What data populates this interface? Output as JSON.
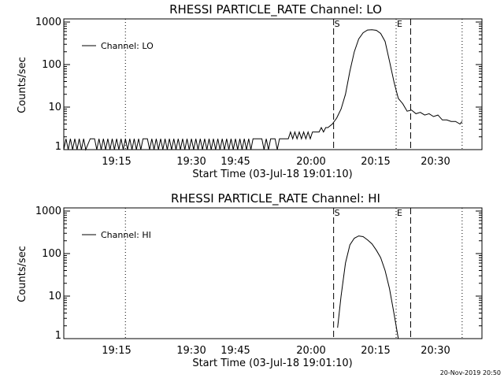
{
  "footer_timestamp": "20-Nov-2019 20:50",
  "chart_data": [
    {
      "type": "line",
      "title": "RHESSI PARTICLE_RATE Channel: LO",
      "xlabel": "Start Time (03-Jul-18 19:01:10)",
      "ylabel": "Counts/sec",
      "yscale": "log",
      "ylim": [
        1,
        1000
      ],
      "xlim_minutes": [
        0,
        95
      ],
      "x_ticks": [
        "19:15",
        "19:30",
        "19:45",
        "20:00",
        "20:15",
        "20:30"
      ],
      "y_ticks": [
        "1",
        "10",
        "100",
        "1000"
      ],
      "legend": "Channel: LO",
      "legend_position": "top-left",
      "markers": [
        {
          "label": "",
          "minute": 14,
          "style": "dotted"
        },
        {
          "label": "S",
          "minute": 61.3,
          "style": "dashed"
        },
        {
          "label": "E",
          "minute": 75.5,
          "style": "dotted"
        },
        {
          "label": "",
          "minute": 78.8,
          "style": "dashed"
        },
        {
          "label": "",
          "minute": 90.5,
          "style": "dotted"
        }
      ],
      "series": [
        {
          "name": "Channel: LO",
          "points": [
            [
              0,
              1
            ],
            [
              0.5,
              1.8
            ],
            [
              1,
              1
            ],
            [
              1.5,
              1.8
            ],
            [
              2,
              1
            ],
            [
              2.5,
              1.8
            ],
            [
              3,
              1
            ],
            [
              3.5,
              1.8
            ],
            [
              4,
              1
            ],
            [
              4.5,
              1.8
            ],
            [
              5,
              1
            ],
            [
              6,
              1.8
            ],
            [
              7,
              1.8
            ],
            [
              7.5,
              1
            ],
            [
              8,
              1.8
            ],
            [
              8.5,
              1
            ],
            [
              9,
              1.8
            ],
            [
              9.5,
              1
            ],
            [
              10,
              1.8
            ],
            [
              10.5,
              1
            ],
            [
              11,
              1.8
            ],
            [
              11.5,
              1
            ],
            [
              12,
              1.8
            ],
            [
              12.5,
              1
            ],
            [
              13,
              1.8
            ],
            [
              13.5,
              1
            ],
            [
              14,
              1.8
            ],
            [
              14.5,
              1
            ],
            [
              15,
              1.8
            ],
            [
              15.5,
              1
            ],
            [
              16,
              1.8
            ],
            [
              16.5,
              1
            ],
            [
              17,
              1.8
            ],
            [
              17.5,
              1
            ],
            [
              18,
              1.8
            ],
            [
              19,
              1.8
            ],
            [
              19.5,
              1
            ],
            [
              20,
              1.8
            ],
            [
              20.5,
              1
            ],
            [
              21,
              1.8
            ],
            [
              21.5,
              1
            ],
            [
              22,
              1.8
            ],
            [
              22.5,
              1
            ],
            [
              23,
              1.8
            ],
            [
              23.5,
              1
            ],
            [
              24,
              1.8
            ],
            [
              24.5,
              1
            ],
            [
              25,
              1.8
            ],
            [
              25.5,
              1
            ],
            [
              26,
              1.8
            ],
            [
              26.5,
              1
            ],
            [
              27,
              1.8
            ],
            [
              27.5,
              1
            ],
            [
              28,
              1.8
            ],
            [
              28.5,
              1
            ],
            [
              29,
              1.8
            ],
            [
              29.5,
              1
            ],
            [
              30,
              1.8
            ],
            [
              30.5,
              1
            ],
            [
              31,
              1.8
            ],
            [
              31.5,
              1
            ],
            [
              32,
              1.8
            ],
            [
              32.5,
              1
            ],
            [
              33,
              1.8
            ],
            [
              33.5,
              1
            ],
            [
              34,
              1.8
            ],
            [
              34.5,
              1
            ],
            [
              35,
              1.8
            ],
            [
              35.5,
              1
            ],
            [
              36,
              1.8
            ],
            [
              36.5,
              1
            ],
            [
              37,
              1.8
            ],
            [
              37.5,
              1
            ],
            [
              38,
              1.8
            ],
            [
              38.5,
              1
            ],
            [
              39,
              1.8
            ],
            [
              39.5,
              1
            ],
            [
              40,
              1.8
            ],
            [
              40.5,
              1
            ],
            [
              41,
              1.8
            ],
            [
              41.5,
              1
            ],
            [
              42,
              1.8
            ],
            [
              42.5,
              1
            ],
            [
              43,
              1.8
            ],
            [
              44,
              1.8
            ],
            [
              45,
              1.8
            ],
            [
              45.5,
              1
            ],
            [
              46,
              1.8
            ],
            [
              46.5,
              1
            ],
            [
              47,
              1.8
            ],
            [
              48,
              1.8
            ],
            [
              48.5,
              1
            ],
            [
              49,
              1.8
            ],
            [
              50,
              1.8
            ],
            [
              51,
              1.8
            ],
            [
              51.5,
              2.6
            ],
            [
              52,
              1.8
            ],
            [
              52.5,
              2.6
            ],
            [
              53,
              1.8
            ],
            [
              53.5,
              2.6
            ],
            [
              54,
              1.8
            ],
            [
              54.5,
              2.6
            ],
            [
              55,
              1.8
            ],
            [
              55.5,
              2.6
            ],
            [
              56,
              1.8
            ],
            [
              56.5,
              2.6
            ],
            [
              57,
              2.6
            ],
            [
              58,
              2.6
            ],
            [
              58.5,
              3.3
            ],
            [
              59,
              2.6
            ],
            [
              59.5,
              3.3
            ],
            [
              60,
              3.3
            ],
            [
              61,
              4
            ],
            [
              62,
              5.5
            ],
            [
              63,
              9
            ],
            [
              64,
              20
            ],
            [
              65,
              70
            ],
            [
              66,
              200
            ],
            [
              67,
              400
            ],
            [
              68,
              560
            ],
            [
              69,
              650
            ],
            [
              70,
              660
            ],
            [
              71,
              640
            ],
            [
              72,
              540
            ],
            [
              73,
              350
            ],
            [
              74,
              120
            ],
            [
              75,
              40
            ],
            [
              75.5,
              25
            ],
            [
              76,
              16
            ],
            [
              77,
              12
            ],
            [
              78,
              8
            ],
            [
              79,
              8.5
            ],
            [
              80,
              7
            ],
            [
              81,
              7.5
            ],
            [
              82,
              6.5
            ],
            [
              83,
              7
            ],
            [
              84,
              6
            ],
            [
              85,
              6.5
            ],
            [
              86,
              5
            ],
            [
              87,
              5
            ],
            [
              88,
              4.6
            ],
            [
              89,
              4.6
            ],
            [
              90,
              4
            ],
            [
              90.5,
              4.6
            ]
          ]
        }
      ]
    },
    {
      "type": "line",
      "title": "RHESSI PARTICLE_RATE Channel: HI",
      "xlabel": "Start Time (03-Jul-18 19:01:10)",
      "ylabel": "Counts/sec",
      "yscale": "log",
      "ylim": [
        1,
        1000
      ],
      "xlim_minutes": [
        0,
        95
      ],
      "x_ticks": [
        "19:15",
        "19:30",
        "19:45",
        "20:00",
        "20:15",
        "20:30"
      ],
      "y_ticks": [
        "1",
        "10",
        "100",
        "1000"
      ],
      "legend": "Channel: HI",
      "legend_position": "top-left",
      "markers": [
        {
          "label": "",
          "minute": 14,
          "style": "dotted"
        },
        {
          "label": "S",
          "minute": 61.3,
          "style": "dashed"
        },
        {
          "label": "E",
          "minute": 75.5,
          "style": "dotted"
        },
        {
          "label": "",
          "minute": 78.8,
          "style": "dashed"
        },
        {
          "label": "",
          "minute": 90.5,
          "style": "dotted"
        }
      ],
      "series": [
        {
          "name": "Channel: HI",
          "points": [
            [
              62.2,
              1.8
            ],
            [
              63,
              10
            ],
            [
              64,
              60
            ],
            [
              65,
              160
            ],
            [
              66,
              230
            ],
            [
              67,
              260
            ],
            [
              68,
              250
            ],
            [
              69,
              210
            ],
            [
              70,
              170
            ],
            [
              71,
              120
            ],
            [
              72,
              80
            ],
            [
              73,
              40
            ],
            [
              74,
              15
            ],
            [
              75,
              4
            ],
            [
              76,
              1
            ]
          ]
        }
      ]
    }
  ]
}
